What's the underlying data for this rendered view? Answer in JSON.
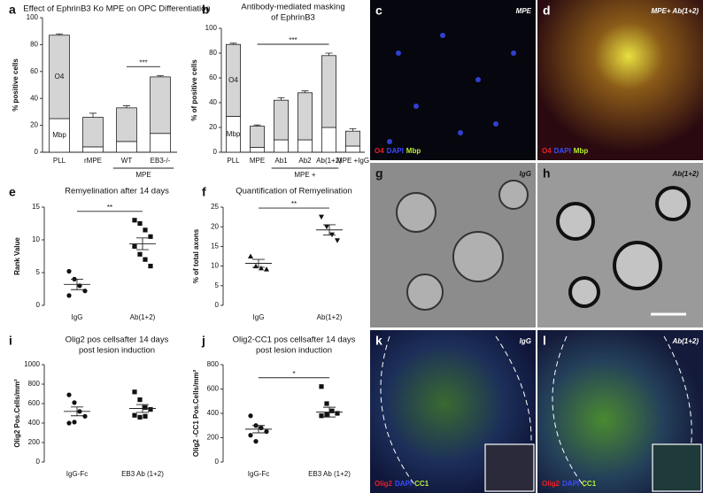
{
  "chart_data": [
    {
      "letter": "a",
      "type": "bar",
      "stacked": true,
      "title": [
        "Effect of EphrinB3 Ko MPE on OPC Differentiation"
      ],
      "y_label": "% positive cells",
      "categories": [
        "PLL",
        "rMPE",
        "WT",
        "EB3-/-"
      ],
      "series": [
        {
          "name": "Mbp",
          "color": "#ffffff",
          "values": [
            25,
            4,
            8,
            14
          ],
          "errors": [
            1,
            0.5,
            0.5,
            1
          ]
        },
        {
          "name": "O4",
          "color": "#d4d4d4",
          "values": [
            62,
            22,
            25,
            42
          ],
          "errors": [
            1,
            3,
            1.5,
            1
          ]
        }
      ],
      "ylim": [
        0,
        100
      ],
      "yticks": [
        0,
        20,
        40,
        60,
        80,
        100
      ],
      "significance": [
        {
          "label": "***",
          "between": [
            "WT",
            "EB3-/-"
          ]
        }
      ],
      "groups": [
        {
          "label": "MPE",
          "categories": [
            "WT",
            "EB3-/-"
          ]
        }
      ]
    },
    {
      "letter": "b",
      "type": "bar",
      "stacked": true,
      "title": [
        "Antibody-mediated masking",
        "of EphrinB3"
      ],
      "y_label": "% of positive cells",
      "categories": [
        "PLL",
        "MPE",
        "Ab1",
        "Ab2",
        "Ab(1+2)",
        "MPE +IgG"
      ],
      "series": [
        {
          "name": "Mbp",
          "color": "#ffffff",
          "values": [
            29,
            4,
            10,
            10,
            20,
            5
          ],
          "errors": [
            1,
            1,
            0.5,
            0.5,
            0.5,
            1
          ]
        },
        {
          "name": "O4",
          "color": "#d4d4d4",
          "values": [
            58,
            17,
            32,
            38,
            58,
            12
          ],
          "errors": [
            1,
            1,
            2,
            1.5,
            2,
            2
          ]
        }
      ],
      "ylim": [
        0,
        100
      ],
      "yticks": [
        0,
        20,
        40,
        60,
        80,
        100
      ],
      "significance": [
        {
          "label": "***",
          "between": [
            "MPE",
            "Ab(1+2)"
          ]
        }
      ],
      "groups": [
        {
          "label": "MPE +",
          "categories": [
            "Ab1",
            "Ab2",
            "Ab(1+2)"
          ]
        }
      ]
    },
    {
      "letter": "e",
      "type": "dot",
      "title": [
        "Remyelination after 14 days"
      ],
      "y_label": "Rank Value",
      "categories": [
        "IgG",
        "Ab(1+2)"
      ],
      "markers": [
        "circle",
        "square"
      ],
      "points": [
        [
          5.2,
          4,
          3,
          2.2,
          1.5
        ],
        [
          13,
          12.5,
          11.5,
          10.5,
          9,
          7.8,
          7,
          6
        ]
      ],
      "means": [
        3.2,
        9.4
      ],
      "sems": [
        0.8,
        0.9
      ],
      "ylim": [
        0,
        15
      ],
      "yticks": [
        0,
        5,
        10,
        15
      ],
      "significance": [
        {
          "label": "**",
          "between": [
            "IgG",
            "Ab(1+2)"
          ]
        }
      ]
    },
    {
      "letter": "f",
      "type": "dot",
      "title": [
        "Quantification of Remyelination"
      ],
      "y_label": "% of total axons",
      "categories": [
        "IgG",
        "Ab(1+2)"
      ],
      "markers": [
        "triangle-up",
        "triangle-down"
      ],
      "points": [
        [
          12.5,
          10,
          9.5,
          9.2
        ],
        [
          22.5,
          20,
          18,
          16.5
        ]
      ],
      "means": [
        10.7,
        19.2
      ],
      "sems": [
        1,
        1.3
      ],
      "ylim": [
        0,
        25
      ],
      "yticks": [
        0,
        5,
        10,
        15,
        20,
        25
      ],
      "significance": [
        {
          "label": "**",
          "between": [
            "IgG",
            "Ab(1+2)"
          ]
        }
      ]
    },
    {
      "letter": "i",
      "type": "dot",
      "title": [
        "Olig2 pos cellsafter 14 days",
        "post lesion induction"
      ],
      "y_label": "Olig2 Pos.Cells/mm²",
      "categories": [
        "IgG-Fc",
        "EB3 Ab (1+2)"
      ],
      "markers": [
        "circle",
        "square"
      ],
      "points": [
        [
          690,
          610,
          520,
          470,
          400,
          410
        ],
        [
          720,
          640,
          560,
          540,
          480,
          460,
          470
        ]
      ],
      "means": [
        520,
        550
      ],
      "sems": [
        45,
        40
      ],
      "ylim": [
        0,
        1000
      ],
      "yticks": [
        0,
        200,
        400,
        600,
        800,
        1000
      ],
      "significance": []
    },
    {
      "letter": "j",
      "type": "dot",
      "title": [
        "Olig2-CC1 pos cellsafter 14 days",
        "post lesion induction"
      ],
      "y_label": "Olig2 -CC1 Pos.Cells/mm²",
      "categories": [
        "IgG-Fc",
        "EB3 Ab (1+2)"
      ],
      "markers": [
        "circle",
        "square"
      ],
      "points": [
        [
          380,
          300,
          280,
          250,
          220,
          170
        ],
        [
          620,
          480,
          420,
          400,
          380,
          390
        ]
      ],
      "means": [
        270,
        410
      ],
      "sems": [
        30,
        40
      ],
      "ylim": [
        0,
        800
      ],
      "yticks": [
        0,
        200,
        400,
        600,
        800
      ],
      "significance": [
        {
          "label": "*",
          "between": [
            "IgG-Fc",
            "EB3 Ab (1+2)"
          ]
        }
      ]
    }
  ],
  "image_panels": [
    {
      "letter": "c",
      "label": "MPE",
      "stains": [
        {
          "name": "O4",
          "color": "#e8202a"
        },
        {
          "name": "DAPI",
          "color": "#3b4cff"
        },
        {
          "name": "Mbp",
          "color": "#b8f030"
        }
      ]
    },
    {
      "letter": "d",
      "label": "MPE+ Ab(1+2)",
      "stains": [
        {
          "name": "O4",
          "color": "#e8202a"
        },
        {
          "name": "DAPI",
          "color": "#3b4cff"
        },
        {
          "name": "Mbp",
          "color": "#b8f030"
        }
      ]
    },
    {
      "letter": "g",
      "label": "IgG",
      "stains": []
    },
    {
      "letter": "h",
      "label": "Ab(1+2)",
      "stains": []
    },
    {
      "letter": "k",
      "label": "IgG",
      "stains": [
        {
          "name": "Olig2",
          "color": "#e8202a"
        },
        {
          "name": "DAPI",
          "color": "#3b4cff"
        },
        {
          "name": "CC1",
          "color": "#b8f030"
        }
      ]
    },
    {
      "letter": "l",
      "label": "Ab(1+2)",
      "stains": [
        {
          "name": "Olig2",
          "color": "#e8202a"
        },
        {
          "name": "DAPI",
          "color": "#3b4cff"
        },
        {
          "name": "CC1",
          "color": "#b8f030"
        }
      ]
    }
  ]
}
